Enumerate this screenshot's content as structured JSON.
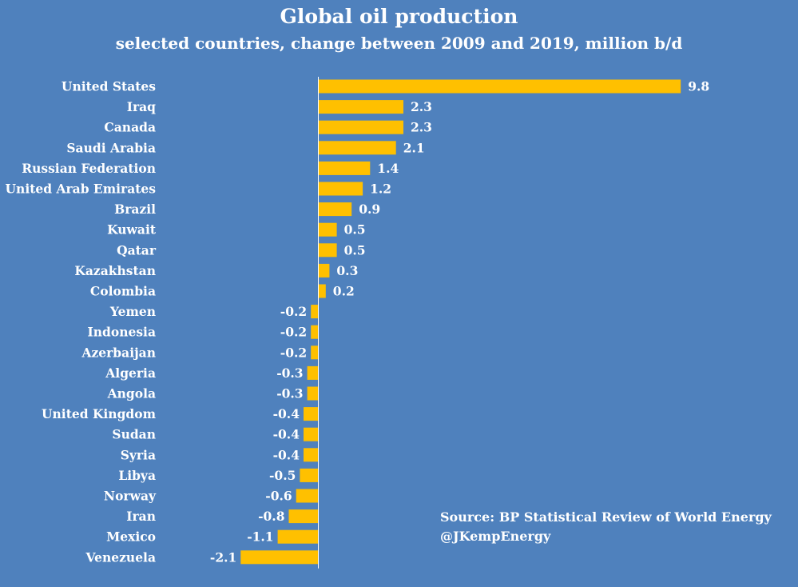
{
  "chart_data": {
    "type": "bar",
    "orientation": "horizontal",
    "title": "Global oil production",
    "subtitle": "selected countries, change between 2009 and 2019, million b/d",
    "categories": [
      "United States",
      "Iraq",
      "Canada",
      "Saudi Arabia",
      "Russian Federation",
      "United Arab Emirates",
      "Brazil",
      "Kuwait",
      "Qatar",
      "Kazakhstan",
      "Colombia",
      "Yemen",
      "Indonesia",
      "Azerbaijan",
      "Algeria",
      "Angola",
      "United Kingdom",
      "Sudan",
      "Syria",
      "Libya",
      "Norway",
      "Iran",
      "Mexico",
      "Venezuela"
    ],
    "values": [
      9.8,
      2.3,
      2.3,
      2.1,
      1.4,
      1.2,
      0.9,
      0.5,
      0.5,
      0.3,
      0.2,
      -0.2,
      -0.2,
      -0.2,
      -0.3,
      -0.3,
      -0.4,
      -0.4,
      -0.4,
      -0.5,
      -0.6,
      -0.8,
      -1.1,
      -2.1
    ],
    "data_labels": [
      "9.8",
      "2.3",
      "2.3",
      "2.1",
      "1.4",
      "1.2",
      "0.9",
      "0.5",
      "0.5",
      "0.3",
      "0.2",
      "-0.2",
      "-0.2",
      "-0.2",
      "-0.3",
      "-0.3",
      "-0.4",
      "-0.4",
      "-0.4",
      "-0.5",
      "-0.6",
      "-0.8",
      "-1.1",
      "-2.1"
    ],
    "xlim": [
      -2.1,
      9.8
    ],
    "grid": false,
    "legend": "none",
    "xlabel": "",
    "ylabel": "",
    "colors": {
      "background": "#4f81bd",
      "bar": "#ffc000",
      "text": "#ffffff",
      "axis": "#ffffff"
    }
  },
  "source": {
    "line1": "Source: BP Statistical Review of World Energy",
    "line2": "@JKempEnergy"
  }
}
